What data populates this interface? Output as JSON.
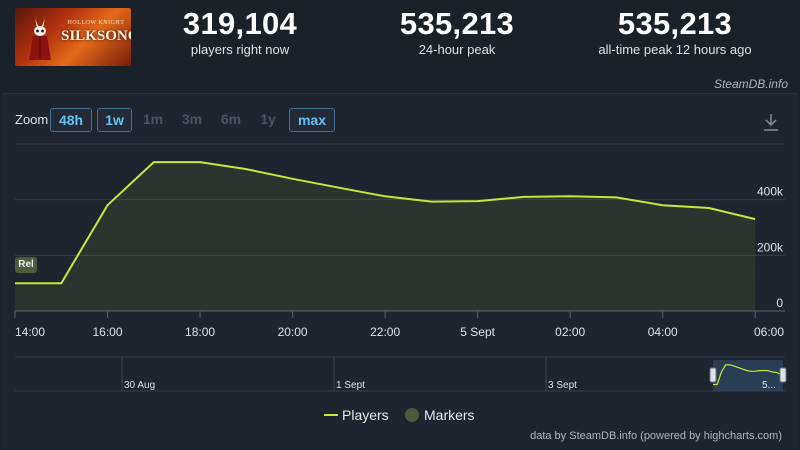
{
  "header": {
    "game_thumbnail": {
      "logo_subtitle": "HOLLOW KNIGHT",
      "logo_title": "SILKSONG"
    },
    "stats": [
      {
        "value": "319,104",
        "label": "players right now"
      },
      {
        "value": "535,213",
        "label": "24-hour peak"
      },
      {
        "value": "535,213",
        "label": "all-time peak 12 hours ago"
      }
    ],
    "site_credit": "SteamDB.info"
  },
  "zoom": {
    "label": "Zoom",
    "buttons": [
      {
        "label": "48h",
        "active": true
      },
      {
        "label": "1w",
        "active": true
      },
      {
        "label": "1m",
        "active": false
      },
      {
        "label": "3m",
        "active": false
      },
      {
        "label": "6m",
        "active": false
      },
      {
        "label": "1y",
        "active": false
      },
      {
        "label": "max",
        "active": true
      }
    ]
  },
  "chart_data": {
    "type": "area",
    "x_tick_labels": [
      "14:00",
      "16:00",
      "18:00",
      "20:00",
      "22:00",
      "5 Sept",
      "02:00",
      "04:00",
      "06:00"
    ],
    "y_tick_labels": [
      "0",
      "200k",
      "400k"
    ],
    "ylim": [
      0,
      600000
    ],
    "grid": true,
    "series": [
      {
        "name": "Players",
        "color": "#c8e63c",
        "x_hours": [
          0,
          1,
          2,
          3,
          4,
          5,
          6,
          7,
          8,
          9,
          10,
          11,
          12,
          13,
          14,
          15,
          16
        ],
        "values": [
          100000,
          100000,
          380000,
          535000,
          535000,
          510000,
          475000,
          443000,
          412000,
          393000,
          395000,
          410000,
          412000,
          408000,
          380000,
          370000,
          330000
        ]
      }
    ],
    "start_marker_label": "Rel",
    "navigator_labels": [
      "30 Aug",
      "1 Sept",
      "3 Sept",
      "5..."
    ],
    "legend": [
      {
        "name": "Players",
        "color": "#c8e63c"
      },
      {
        "name": "Markers",
        "color": "#4c5a3c"
      }
    ]
  },
  "footer": {
    "credit": "data by SteamDB.info (powered by highcharts.com)"
  }
}
